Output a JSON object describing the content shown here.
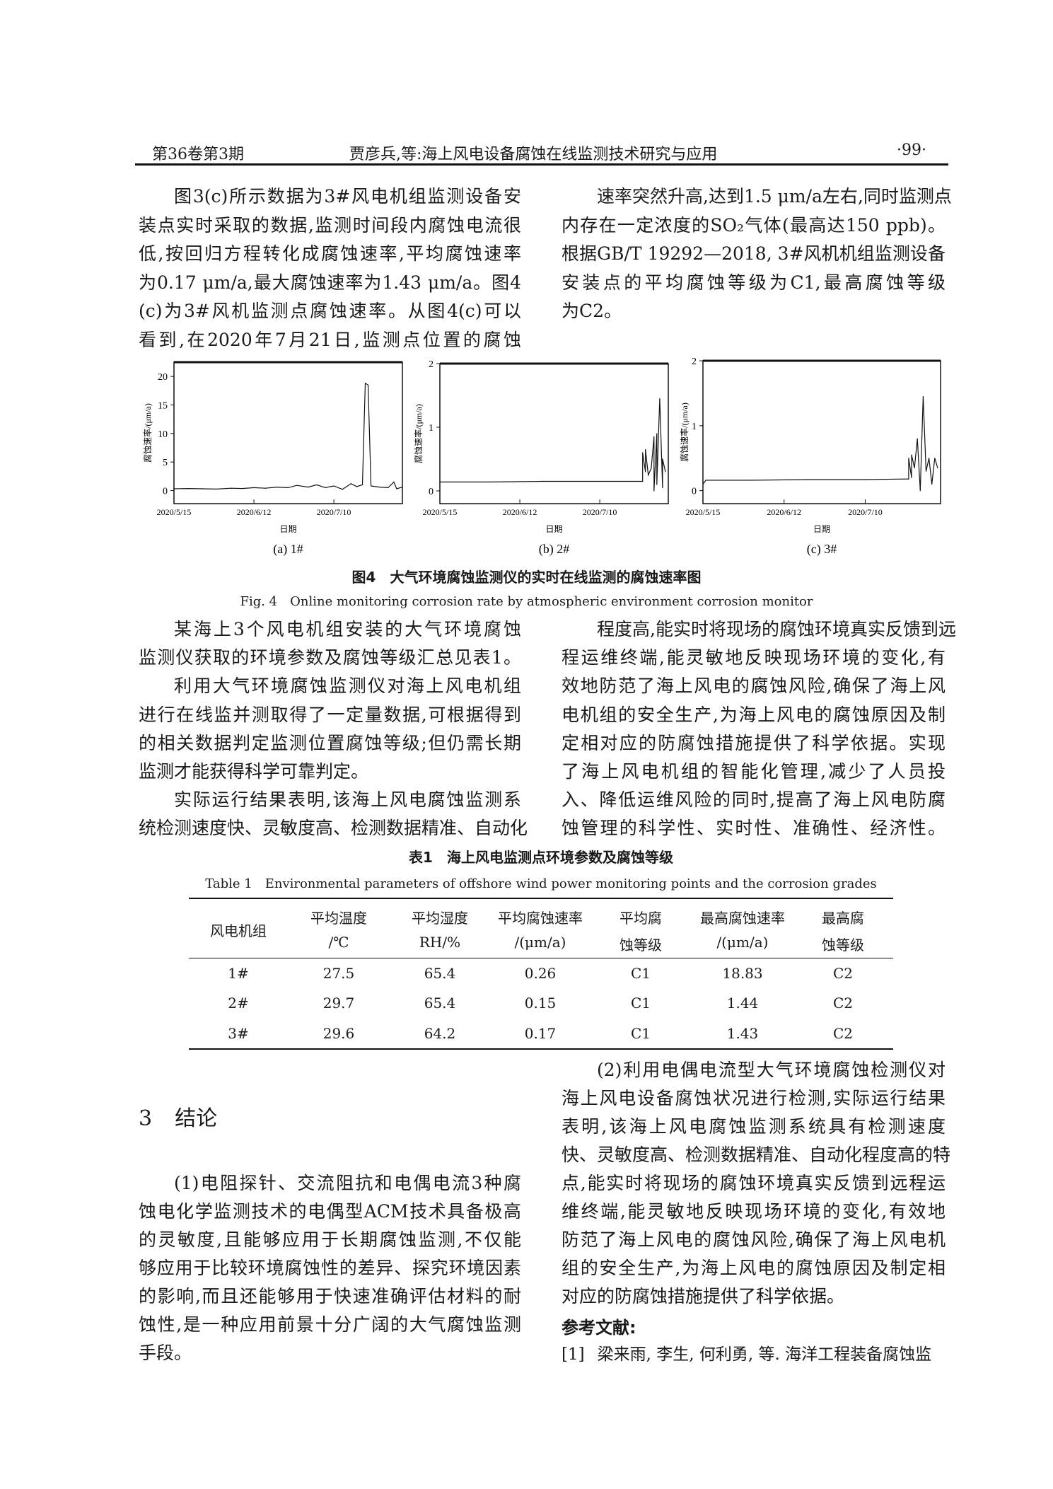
{
  "header": {
    "issue": "第36卷第3期",
    "title": "贾彦兵,等:海上风电设备腐蚀在线监测技术研究与应用",
    "page": "·99·"
  },
  "blocks": {
    "top_left": [
      [
        "图3(c)所示数据为3#风电机组监测设备安",
        "装点实时采取的数据,监测时间段内腐蚀电流很",
        "低,按回归方程转化成腐蚀速率,平均腐蚀速率",
        "为0.17 μm/a,最大腐蚀速率为1.43 μm/a。图4",
        "(c)为3#风机监测点腐蚀速率。从图4(c)可以",
        "看到,在2020年7月21日,监测点位置的腐蚀"
      ]
    ],
    "top_right": [
      [
        "速率突然升高,达到1.5 μm/a左右,同时监测点",
        "内存在一定浓度的SO₂气体(最高达150 ppb)。",
        "根据GB/T 19292—2018, 3#风机机组监测设备",
        "安装点的平均腐蚀等级为C1,最高腐蚀等级",
        "为C2。"
      ]
    ],
    "mid_left": [
      [
        "某海上3个风电机组安装的大气环境腐蚀",
        "监测仪获取的环境参数及腐蚀等级汇总见表1。"
      ],
      [
        "利用大气环境腐蚀监测仪对海上风电机组",
        "进行在线监并测取得了一定量数据,可根据得到",
        "的相关数据判定监测位置腐蚀等级;但仍需长期",
        "监测才能获得科学可靠判定。"
      ],
      [
        "实际运行结果表明,该海上风电腐蚀监测系",
        "统检测速度快、灵敏度高、检测数据精准、自动化"
      ]
    ],
    "mid_right": [
      [
        "程度高,能实时将现场的腐蚀环境真实反馈到远",
        "程运维终端,能灵敏地反映现场环境的变化,有",
        "效地防范了海上风电的腐蚀风险,确保了海上风",
        "电机组的安全生产,为海上风电的腐蚀原因及制",
        "定相对应的防腐蚀措施提供了科学依据。实现",
        "了海上风电机组的智能化管理,减少了人员投",
        "入、降低运维风险的同时,提高了海上风电防腐",
        "蚀管理的科学性、实时性、准确性、经济性。"
      ]
    ],
    "bottom_left": [
      [
        "(1)电阻探针、交流阻抗和电偶电流3种腐",
        "蚀电化学监测技术的电偶型ACM技术具备极高",
        "的灵敏度,且能够应用于长期腐蚀监测,不仅能",
        "够应用于比较环境腐蚀性的差异、探究环境因素",
        "的影响,而且还能够用于快速准确评估材料的耐",
        "蚀性,是一种应用前景十分广阔的大气腐蚀监测",
        "手段。"
      ]
    ],
    "bottom_right": [
      [
        "(2)利用电偶电流型大气环境腐蚀检测仪对",
        "海上风电设备腐蚀状况进行检测,实际运行结果",
        "表明,该海上风电腐蚀监测系统具有检测速度",
        "快、灵敏度高、检测数据精准、自动化程度高的特",
        "点,能实时将现场的腐蚀环境真实反馈到远程运",
        "维终端,能灵敏地反映现场环境的变化,有效地",
        "防范了海上风电的腐蚀风险,确保了海上风电机",
        "组的安全生产,为海上风电的腐蚀原因及制定相",
        "对应的防腐蚀措施提供了科学依据。"
      ]
    ]
  },
  "section": {
    "number": "3",
    "title": "结论"
  },
  "references": {
    "heading": "参考文献:",
    "items": [
      {
        "num": "[1]",
        "text": "梁来雨, 李生, 何利勇, 等. 海洋工程装备腐蚀监"
      }
    ]
  },
  "figure": {
    "title_cn": "图4　大气环境腐蚀监测仪的实时在线监测的腐蚀速率图",
    "title_en": "Fig. 4　Online monitoring corrosion rate by atmospheric environment corrosion monitor"
  },
  "chart_data": [
    {
      "type": "line",
      "caption": "(a) 1#",
      "xlabel": "日期",
      "ylabel": "腐蚀速率/(μm/a)",
      "xlim": [
        "2020-05-15",
        "2020-08-03"
      ],
      "ylim": [
        -2.3,
        22.5
      ],
      "xticks": [
        "2020/5/15",
        "2020/6/12",
        "2020/7/10"
      ],
      "yticks": [
        0,
        5,
        10,
        15,
        20
      ],
      "grid": false,
      "color": "#111111",
      "x": [
        "2020-05-15",
        "2020-05-20",
        "2020-05-25",
        "2020-05-30",
        "2020-06-04",
        "2020-06-08",
        "2020-06-12",
        "2020-06-16",
        "2020-06-20",
        "2020-06-24",
        "2020-06-27",
        "2020-07-01",
        "2020-07-04",
        "2020-07-07",
        "2020-07-10",
        "2020-07-13",
        "2020-07-16",
        "2020-07-18",
        "2020-07-20",
        "2020-07-21",
        "2020-07-22",
        "2020-07-23",
        "2020-07-26",
        "2020-07-29",
        "2020-07-31",
        "2020-08-01",
        "2020-08-03"
      ],
      "y": [
        0.3,
        0.35,
        0.3,
        0.25,
        0.4,
        0.35,
        0.5,
        0.4,
        0.6,
        0.5,
        0.9,
        0.6,
        1.0,
        0.5,
        0.8,
        0.2,
        1.2,
        0.7,
        1.0,
        18.8,
        18.5,
        0.8,
        0.6,
        0.5,
        1.5,
        0.3,
        0.6
      ]
    },
    {
      "type": "line",
      "caption": "(b) 2#",
      "xlabel": "日期",
      "ylabel": "腐蚀速率/(μm/a)",
      "xlim": [
        "2020-05-15",
        "2020-08-03"
      ],
      "ylim": [
        -0.2,
        2
      ],
      "xticks": [
        "2020/5/15",
        "2020/6/12",
        "2020/7/10"
      ],
      "yticks": [
        0,
        1,
        2
      ],
      "grid": false,
      "color": "#111111",
      "x": [
        "2020-05-15",
        "2020-06-01",
        "2020-06-20",
        "2020-07-10",
        "2020-07-25",
        "2020-07-25",
        "2020-07-26",
        "2020-07-26",
        "2020-07-27",
        "2020-07-28",
        "2020-07-29",
        "2020-07-29",
        "2020-07-30",
        "2020-07-30",
        "2020-07-31",
        "2020-08-01",
        "2020-08-01",
        "2020-08-02"
      ],
      "y": [
        0.14,
        0.14,
        0.15,
        0.15,
        0.15,
        0.6,
        0.3,
        0.65,
        0.25,
        0.35,
        0.85,
        0.0,
        0.9,
        0.1,
        1.45,
        0.05,
        0.5,
        0.3
      ]
    },
    {
      "type": "line",
      "caption": "(c) 3#",
      "xlabel": "日期",
      "ylabel": "腐蚀速率/(μm/a)",
      "xlim": [
        "2020-05-15",
        "2020-08-05"
      ],
      "ylim": [
        -0.2,
        2
      ],
      "xticks": [
        "2020/5/15",
        "2020/6/12",
        "2020/7/10"
      ],
      "yticks": [
        0,
        1,
        2
      ],
      "grid": false,
      "color": "#111111",
      "x": [
        "2020-05-15",
        "2020-05-16",
        "2020-06-01",
        "2020-06-20",
        "2020-07-10",
        "2020-07-25",
        "2020-07-25",
        "2020-07-26",
        "2020-07-26",
        "2020-07-27",
        "2020-07-28",
        "2020-07-29",
        "2020-07-30",
        "2020-07-31",
        "2020-08-01",
        "2020-08-02",
        "2020-08-03",
        "2020-08-04"
      ],
      "y": [
        0.1,
        0.16,
        0.16,
        0.17,
        0.17,
        0.18,
        0.5,
        0.2,
        0.55,
        0.35,
        0.8,
        0.0,
        1.45,
        0.3,
        0.5,
        0.1,
        0.5,
        0.35
      ]
    }
  ],
  "table": {
    "title_cn": "表1　海上风电监测点环境参数及腐蚀等级",
    "title_en": "Table 1　Environmental parameters of offshore wind power monitoring points and the corrosion grades",
    "headers": [
      [
        "风电机组",
        ""
      ],
      [
        "平均温度",
        "/℃"
      ],
      [
        "平均湿度",
        "RH/%"
      ],
      [
        "平均腐蚀速率",
        "/(μm/a)"
      ],
      [
        "平均腐",
        "蚀等级"
      ],
      [
        "最高腐蚀速率",
        "/(μm/a)"
      ],
      [
        "最高腐",
        "蚀等级"
      ]
    ],
    "rows": [
      [
        "1#",
        "27.5",
        "65.4",
        "0.26",
        "C1",
        "18.83",
        "C2"
      ],
      [
        "2#",
        "29.7",
        "65.4",
        "0.15",
        "C1",
        "1.44",
        "C2"
      ],
      [
        "3#",
        "29.6",
        "64.2",
        "0.17",
        "C1",
        "1.43",
        "C2"
      ]
    ]
  }
}
